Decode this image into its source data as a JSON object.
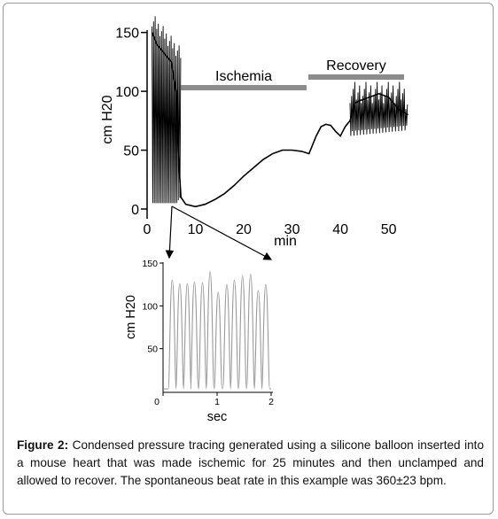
{
  "chart_data": [
    {
      "type": "line",
      "xlabel": "min",
      "ylabel": "cm H20",
      "xlim": [
        0,
        53
      ],
      "ylim": [
        0,
        155
      ],
      "x_ticks": [
        0,
        10,
        20,
        30,
        40,
        50
      ],
      "y_ticks": [
        0,
        50,
        100,
        150
      ],
      "annotations": [
        {
          "text": "Ischemia",
          "x_start": 7,
          "x_end": 33
        },
        {
          "text": "Recovery",
          "x_start": 33,
          "x_end": 54
        }
      ],
      "trace": {
        "x": [
          1,
          2,
          3,
          4,
          5,
          6,
          6.5,
          7,
          8,
          10,
          12,
          14,
          16,
          18,
          20,
          22,
          24,
          26,
          28,
          30,
          32,
          33.5,
          34,
          35,
          36,
          37,
          38,
          39,
          40,
          41,
          42,
          43,
          44,
          46,
          48,
          50,
          52,
          54
        ],
        "y": [
          150,
          140,
          135,
          130,
          125,
          100,
          45,
          10,
          4,
          2,
          4,
          8,
          13,
          20,
          28,
          35,
          42,
          47,
          50,
          50,
          49,
          47,
          52,
          62,
          70,
          72,
          71,
          66,
          62,
          70,
          75,
          90,
          92,
          95,
          98,
          95,
          85,
          80
        ]
      },
      "beating_segments": [
        {
          "x_start": 1,
          "x_end": 7,
          "systolic_max": 155,
          "diastolic_min": 5
        },
        {
          "x_start": 42,
          "x_end": 54,
          "systolic_max": 100,
          "diastolic_min": 50
        }
      ]
    },
    {
      "type": "line",
      "xlabel": "sec",
      "ylabel": "cm H20",
      "xlim": [
        0,
        2
      ],
      "ylim": [
        0,
        150
      ],
      "x_ticks": [
        0,
        1,
        2
      ],
      "y_ticks": [
        50,
        100,
        150
      ],
      "beats": {
        "x": [
          0.17,
          0.31,
          0.45,
          0.58,
          0.73,
          0.87,
          1.02,
          1.18,
          1.32,
          1.47,
          1.62,
          1.76,
          1.9
        ],
        "peak": [
          130,
          126,
          126,
          128,
          127,
          140,
          116,
          125,
          130,
          135,
          137,
          118,
          125
        ]
      }
    }
  ],
  "caption": {
    "label": "Figure 2:",
    "text": "Condensed pressure tracing generated using a silicone balloon inserted into a mouse heart that was made ischemic for 25 minutes and then unclamped and allowed to recover. The spontaneous beat rate in this example was 360±23 bpm."
  }
}
